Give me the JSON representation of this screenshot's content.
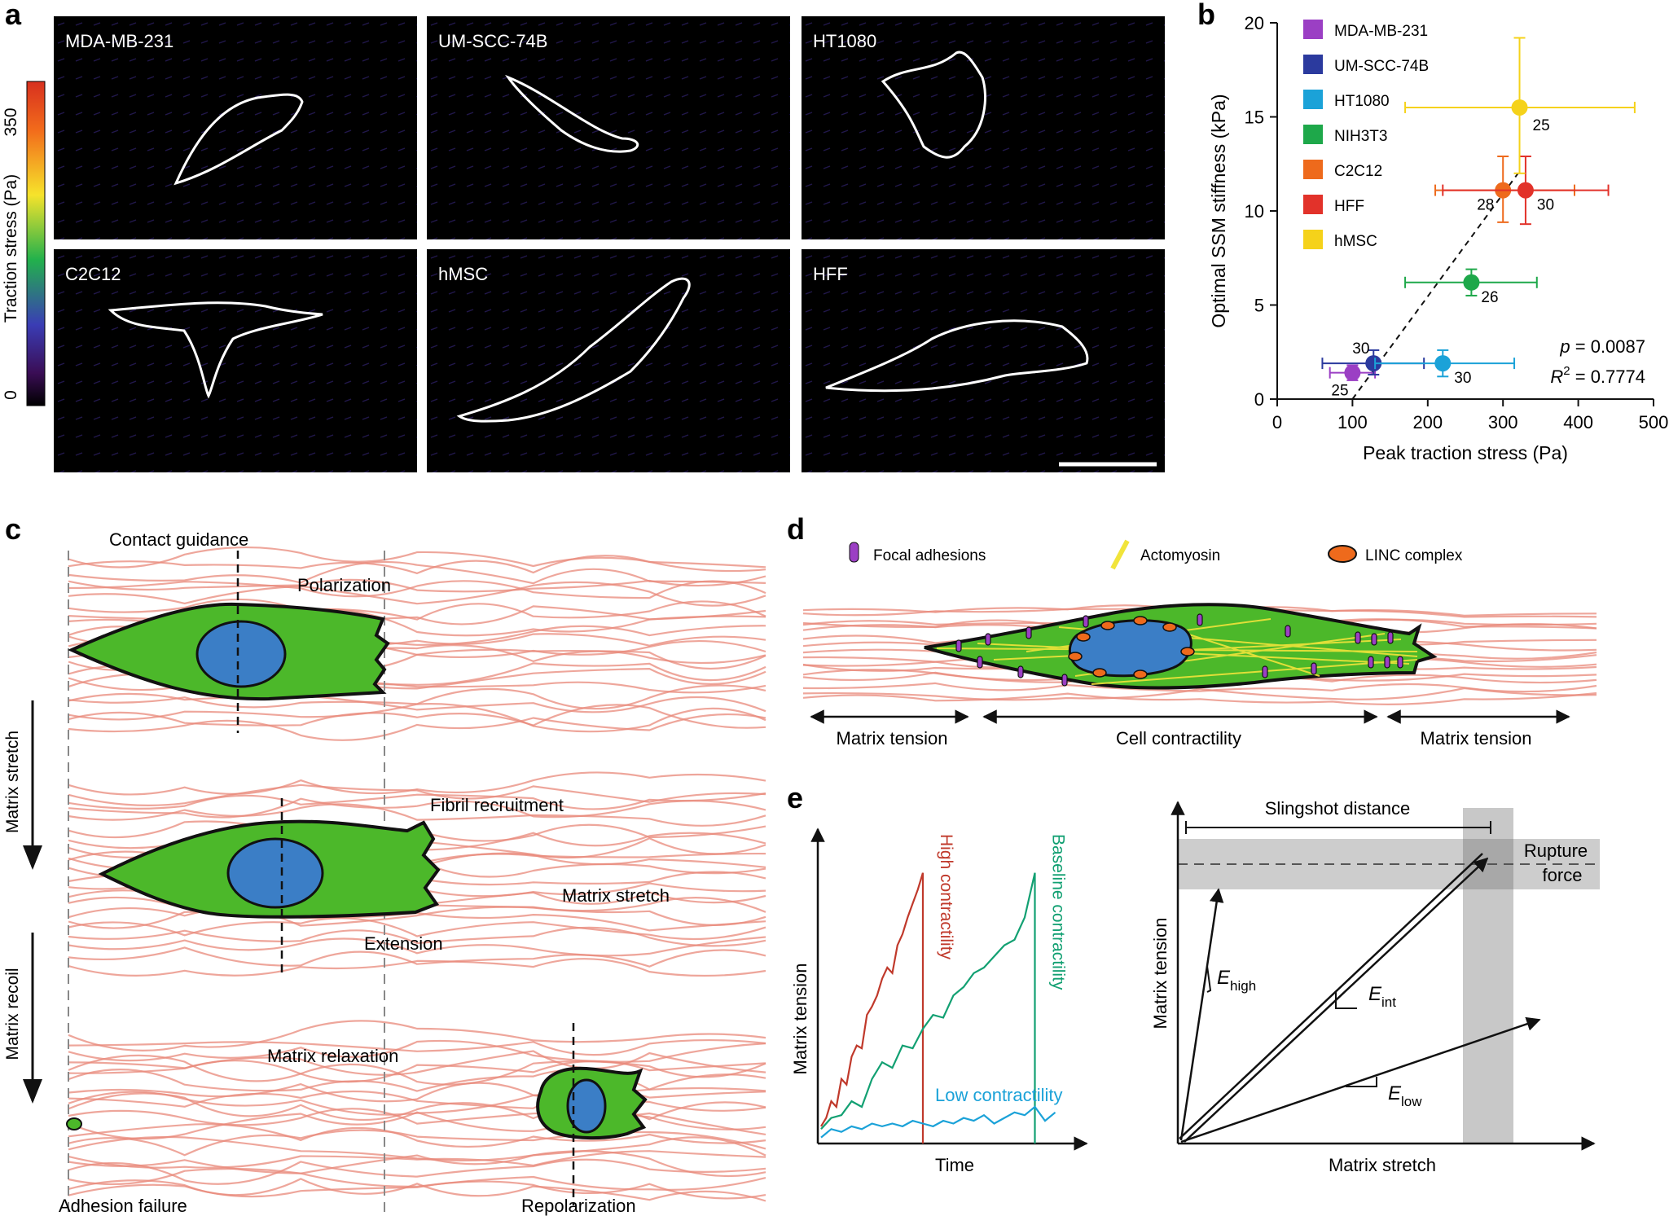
{
  "panel_letters": {
    "a": "a",
    "b": "b",
    "c": "c",
    "d": "d",
    "e": "e"
  },
  "panel_a": {
    "colorbar": {
      "label": "Traction stress (Pa)",
      "max": "350",
      "min": "0"
    },
    "tiles": [
      "MDA-MB-231",
      "UM-SCC-74B",
      "HT1080",
      "C2C12",
      "hMSC",
      "HFF"
    ]
  },
  "chart_data": [
    {
      "type": "scatter",
      "panel": "b",
      "xlabel": "Peak traction stress (Pa)",
      "ylabel": "Optimal SSM stiffness (kPa)",
      "xlim": [
        0,
        500
      ],
      "ylim": [
        0,
        20
      ],
      "xticks": [
        0,
        100,
        200,
        300,
        400,
        500
      ],
      "yticks": [
        0,
        5,
        10,
        15,
        20
      ],
      "legend_position": "top-left",
      "fit_line": {
        "style": "dashed",
        "from": [
          100,
          0
        ],
        "to": [
          320,
          12
        ]
      },
      "series": [
        {
          "name": "MDA-MB-231",
          "color": "#9b3fc4",
          "x": 100,
          "y": 1.4,
          "xerr": [
            70,
            130
          ],
          "yerr": [
            1.0,
            1.8
          ],
          "n": "25"
        },
        {
          "name": "UM-SCC-74B",
          "color": "#2b3a9e",
          "x": 128,
          "y": 1.9,
          "xerr": [
            60,
            195
          ],
          "yerr": [
            1.3,
            2.6
          ],
          "n": "30"
        },
        {
          "name": "HT1080",
          "color": "#1ba2d8",
          "x": 220,
          "y": 1.9,
          "xerr": [
            130,
            315
          ],
          "yerr": [
            1.2,
            2.6
          ],
          "n": "30"
        },
        {
          "name": "NIH3T3",
          "color": "#1ea84a",
          "x": 258,
          "y": 6.2,
          "xerr": [
            170,
            345
          ],
          "yerr": [
            5.5,
            6.9
          ],
          "n": "26"
        },
        {
          "name": "C2C12",
          "color": "#ee6a1c",
          "x": 300,
          "y": 11.1,
          "xerr": [
            210,
            395
          ],
          "yerr": [
            9.4,
            12.9
          ],
          "n": "28"
        },
        {
          "name": "HFF",
          "color": "#e2322a",
          "x": 330,
          "y": 11.1,
          "xerr": [
            220,
            440
          ],
          "yerr": [
            9.3,
            12.9
          ],
          "n": "30"
        },
        {
          "name": "hMSC",
          "color": "#f5d21a",
          "x": 322,
          "y": 15.5,
          "xerr": [
            170,
            475
          ],
          "yerr": [
            12.0,
            19.2
          ],
          "n": "25"
        }
      ],
      "stats": {
        "p_label": "p",
        "p_value": "= 0.0087",
        "r2_label": "R",
        "r2_sup": "2",
        "r2_value": "= 0.7774"
      }
    },
    {
      "type": "line",
      "panel": "e-left",
      "xlabel": "Time",
      "ylabel": "Matrix tension",
      "series": [
        {
          "name": "High contractility",
          "color": "#c0392b",
          "x": [
            0,
            5,
            10,
            15,
            20,
            25,
            30,
            35,
            40,
            45,
            50,
            55,
            60,
            65,
            70,
            75,
            80,
            85,
            90,
            95,
            100
          ],
          "y": [
            5,
            8,
            14,
            12,
            22,
            20,
            30,
            34,
            33,
            45,
            48,
            52,
            58,
            62,
            60,
            70,
            74,
            80,
            85,
            90,
            96
          ]
        },
        {
          "name": "Baseline contractility",
          "color": "#12a072",
          "x": [
            0,
            10,
            20,
            30,
            40,
            50,
            60,
            70,
            80,
            90,
            100,
            110,
            120,
            130,
            140,
            150,
            160,
            170,
            180,
            190,
            200,
            210
          ],
          "y": [
            4,
            8,
            9,
            14,
            12,
            22,
            28,
            26,
            34,
            33,
            40,
            45,
            44,
            52,
            55,
            60,
            62,
            66,
            70,
            72,
            80,
            96
          ]
        },
        {
          "name": "Low contractility",
          "color": "#1ba2d8",
          "x": [
            0,
            10,
            20,
            30,
            40,
            50,
            60,
            70,
            80,
            90,
            100,
            110,
            120,
            130,
            140,
            150,
            160,
            170,
            180,
            190,
            200,
            210,
            220,
            230
          ],
          "y": [
            1,
            4,
            3,
            5,
            4,
            6,
            5,
            6,
            5,
            7,
            6,
            5,
            7,
            6,
            8,
            7,
            9,
            6,
            8,
            10,
            9,
            12,
            7,
            10
          ]
        }
      ]
    }
  ],
  "panel_c": {
    "contact_guidance": "Contact guidance",
    "polarization": "Polarization",
    "matrix_stretch_side": "Matrix stretch",
    "fibril_recruitment": "Fibril recruitment",
    "matrix_stretch": "Matrix stretch",
    "extension": "Extension",
    "matrix_recoil_side": "Matrix recoil",
    "matrix_relaxation": "Matrix relaxation",
    "adhesion_failure": "Adhesion failure",
    "repolarization": "Repolarization"
  },
  "panel_d": {
    "legend": [
      "Focal adhesions",
      "Actomyosin",
      "LINC complex"
    ],
    "matrix_tension_left": "Matrix tension",
    "cell_contractility": "Cell contractility",
    "matrix_tension_right": "Matrix tension"
  },
  "panel_e": {
    "slingshot": "Slingshot distance",
    "rupture_line1": "Rupture",
    "rupture_line2": "force",
    "ylabel": "Matrix tension",
    "xlabel": "Matrix stretch",
    "e_high": "E",
    "e_high_sub": "high",
    "e_int": "E",
    "e_int_sub": "int",
    "e_low": "E",
    "e_low_sub": "low"
  },
  "colors": {
    "fiber": "#e8887a",
    "cell": "#4cb82a",
    "nucleus": "#3b7ec6",
    "adhesion": "#9b3fc4",
    "linc": "#ee6a1c",
    "actomyosin": "#f1e43a"
  }
}
